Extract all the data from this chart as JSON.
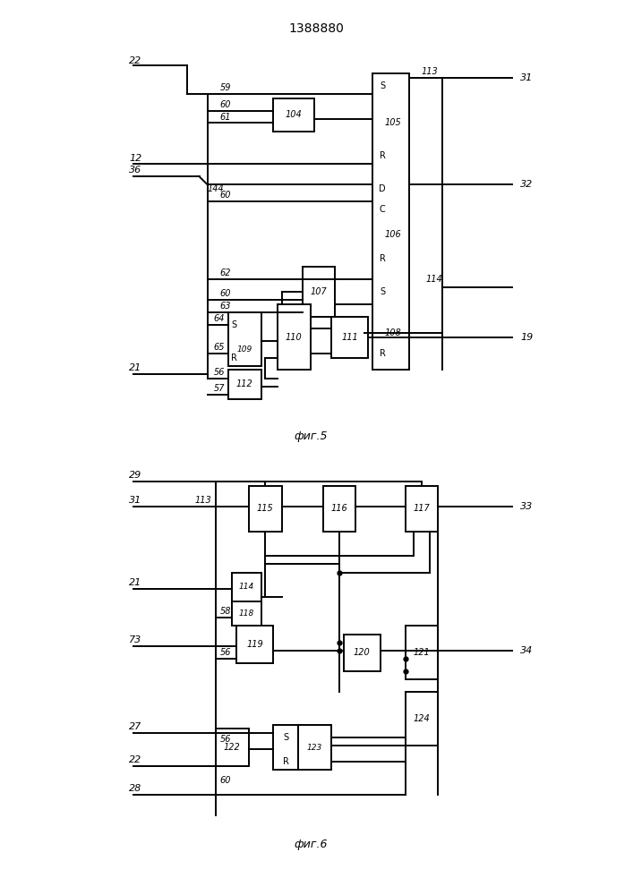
{
  "title": "1388880",
  "fig5_label": "фиг.5",
  "fig6_label": "фиг.6",
  "lw": 1.4
}
